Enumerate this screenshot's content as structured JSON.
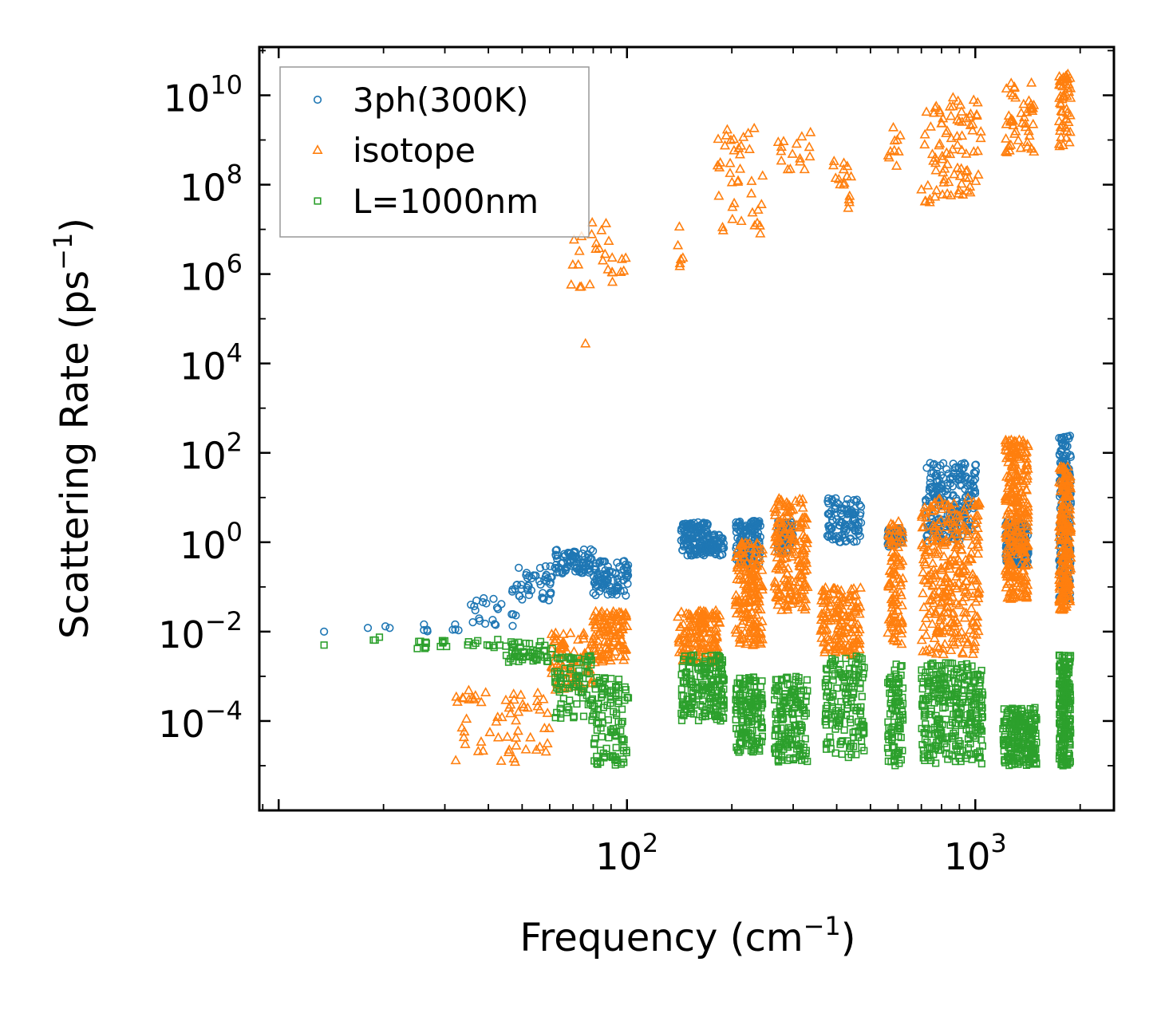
{
  "chart_data": {
    "type": "scatter",
    "title": "",
    "xlabel": "Frequency (cm",
    "xlabel_sup": "−1",
    "xlabel_end": ")",
    "ylabel": "Scattering Rate (ps",
    "ylabel_sup": "−1",
    "ylabel_end": ")",
    "xscale": "log",
    "yscale": "log",
    "xlim": [
      8.8,
      2500
    ],
    "ylim": [
      1e-06,
      120000000000.0
    ],
    "x_ticks": [
      {
        "value": 100,
        "base": "10",
        "exp": "2"
      },
      {
        "value": 1000,
        "base": "10",
        "exp": "3"
      }
    ],
    "y_ticks": [
      {
        "value": 10000000000.0,
        "base": "10",
        "exp": "10"
      },
      {
        "value": 100000000.0,
        "base": "10",
        "exp": "8"
      },
      {
        "value": 1000000.0,
        "base": "10",
        "exp": "6"
      },
      {
        "value": 10000.0,
        "base": "10",
        "exp": "4"
      },
      {
        "value": 100.0,
        "base": "10",
        "exp": "2"
      },
      {
        "value": 1,
        "base": "10",
        "exp": "0"
      },
      {
        "value": 0.01,
        "base": "10",
        "exp": "−2"
      },
      {
        "value": 0.0001,
        "base": "10",
        "exp": "−4"
      }
    ],
    "legend_position": "top-left",
    "series": [
      {
        "name": "3ph(300K)",
        "marker": "circle",
        "color": "#1f77b4",
        "clusters": [
          {
            "xmin": 13.5,
            "xmax": 13.5,
            "ymin": 0.01,
            "ymax": 0.01,
            "n": 1
          },
          {
            "xmin": 18,
            "xmax": 21,
            "ymin": 0.012,
            "ymax": 0.014,
            "n": 3
          },
          {
            "xmin": 24,
            "xmax": 33,
            "ymin": 0.01,
            "ymax": 0.016,
            "n": 8
          },
          {
            "xmin": 35,
            "xmax": 48,
            "ymin": 0.012,
            "ymax": 0.1,
            "n": 25
          },
          {
            "xmin": 48,
            "xmax": 62,
            "ymin": 0.05,
            "ymax": 0.3,
            "n": 45
          },
          {
            "xmin": 62,
            "xmax": 80,
            "ymin": 0.2,
            "ymax": 0.7,
            "n": 80
          },
          {
            "xmin": 80,
            "xmax": 101,
            "ymin": 0.06,
            "ymax": 0.4,
            "n": 90
          },
          {
            "xmin": 143,
            "xmax": 172,
            "ymin": 0.5,
            "ymax": 3,
            "n": 140
          },
          {
            "xmin": 172,
            "xmax": 190,
            "ymin": 0.5,
            "ymax": 1.5,
            "n": 50
          },
          {
            "xmin": 205,
            "xmax": 242,
            "ymin": 0.3,
            "ymax": 3,
            "n": 140
          },
          {
            "xmin": 270,
            "xmax": 300,
            "ymin": 0.6,
            "ymax": 3,
            "n": 60
          },
          {
            "xmin": 375,
            "xmax": 470,
            "ymin": 1,
            "ymax": 10,
            "n": 100
          },
          {
            "xmin": 560,
            "xmax": 620,
            "ymin": 0.8,
            "ymax": 2,
            "n": 50
          },
          {
            "xmin": 720,
            "xmax": 1010,
            "ymin": 1,
            "ymax": 60,
            "n": 220
          },
          {
            "xmin": 1220,
            "xmax": 1420,
            "ymin": 0.3,
            "ymax": 3,
            "n": 150
          },
          {
            "xmin": 1740,
            "xmax": 1880,
            "ymin": 0.05,
            "ymax": 250,
            "n": 220
          }
        ]
      },
      {
        "name": "isotope",
        "marker": "triangle",
        "color": "#ff7f0e",
        "clusters": [
          {
            "xmin": 32,
            "xmax": 60,
            "ymin": 1.2e-05,
            "ymax": 0.0005,
            "n": 60
          },
          {
            "xmin": 60,
            "xmax": 80,
            "ymin": 0.0005,
            "ymax": 0.01,
            "n": 80
          },
          {
            "xmin": 80,
            "xmax": 100,
            "ymin": 0.002,
            "ymax": 0.03,
            "n": 110
          },
          {
            "xmin": 140,
            "xmax": 185,
            "ymin": 0.002,
            "ymax": 0.03,
            "n": 150
          },
          {
            "xmin": 205,
            "xmax": 245,
            "ymin": 0.005,
            "ymax": 1,
            "n": 180
          },
          {
            "xmin": 265,
            "xmax": 330,
            "ymin": 0.03,
            "ymax": 10,
            "n": 180
          },
          {
            "xmin": 360,
            "xmax": 470,
            "ymin": 0.003,
            "ymax": 0.1,
            "n": 150
          },
          {
            "xmin": 560,
            "xmax": 620,
            "ymin": 0.005,
            "ymax": 3,
            "n": 100
          },
          {
            "xmin": 700,
            "xmax": 1030,
            "ymin": 0.003,
            "ymax": 10,
            "n": 300
          },
          {
            "xmin": 1220,
            "xmax": 1420,
            "ymin": 0.05,
            "ymax": 200,
            "n": 280
          },
          {
            "xmin": 1740,
            "xmax": 1880,
            "ymin": 0.03,
            "ymax": 50,
            "n": 200
          },
          {
            "xmin": 68,
            "xmax": 100,
            "ymin": 400000,
            "ymax": 15000000,
            "n": 28
          },
          {
            "xmin": 76,
            "xmax": 76,
            "ymin": 28000,
            "ymax": 28000,
            "n": 1
          },
          {
            "xmin": 140,
            "xmax": 145,
            "ymin": 800000,
            "ymax": 15000000,
            "n": 6
          },
          {
            "xmin": 180,
            "xmax": 248,
            "ymin": 6000000,
            "ymax": 2500000000,
            "n": 40
          },
          {
            "xmin": 270,
            "xmax": 340,
            "ymin": 200000000,
            "ymax": 1500000000,
            "n": 16
          },
          {
            "xmin": 390,
            "xmax": 440,
            "ymin": 30000000,
            "ymax": 400000000,
            "n": 16
          },
          {
            "xmin": 560,
            "xmax": 610,
            "ymin": 150000000,
            "ymax": 2500000000,
            "n": 10
          },
          {
            "xmin": 700,
            "xmax": 1040,
            "ymin": 40000000,
            "ymax": 9000000000,
            "n": 90
          },
          {
            "xmin": 1220,
            "xmax": 1500,
            "ymin": 500000000,
            "ymax": 20000000000,
            "n": 50
          },
          {
            "xmin": 1740,
            "xmax": 1880,
            "ymin": 700000000,
            "ymax": 30000000000,
            "n": 50
          }
        ]
      },
      {
        "name": "L=1000nm",
        "marker": "square",
        "color": "#2ca02c",
        "clusters": [
          {
            "xmin": 13.5,
            "xmax": 13.5,
            "ymin": 0.005,
            "ymax": 0.005,
            "n": 1
          },
          {
            "xmin": 18,
            "xmax": 22,
            "ymin": 0.005,
            "ymax": 0.008,
            "n": 3
          },
          {
            "xmin": 25,
            "xmax": 45,
            "ymin": 0.004,
            "ymax": 0.007,
            "n": 25
          },
          {
            "xmin": 45,
            "xmax": 62,
            "ymin": 0.002,
            "ymax": 0.006,
            "n": 50
          },
          {
            "xmin": 62,
            "xmax": 80,
            "ymin": 0.0001,
            "ymax": 0.003,
            "n": 80
          },
          {
            "xmin": 80,
            "xmax": 101,
            "ymin": 1e-05,
            "ymax": 0.001,
            "n": 110
          },
          {
            "xmin": 143,
            "xmax": 190,
            "ymin": 0.0001,
            "ymax": 0.003,
            "n": 180
          },
          {
            "xmin": 205,
            "xmax": 245,
            "ymin": 2e-05,
            "ymax": 0.001,
            "n": 150
          },
          {
            "xmin": 265,
            "xmax": 330,
            "ymin": 1.2e-05,
            "ymax": 0.001,
            "n": 160
          },
          {
            "xmin": 370,
            "xmax": 480,
            "ymin": 1.5e-05,
            "ymax": 0.003,
            "n": 150
          },
          {
            "xmin": 560,
            "xmax": 620,
            "ymin": 1e-05,
            "ymax": 0.002,
            "n": 90
          },
          {
            "xmin": 700,
            "xmax": 1060,
            "ymin": 1e-05,
            "ymax": 0.002,
            "n": 300
          },
          {
            "xmin": 1200,
            "xmax": 1500,
            "ymin": 1e-05,
            "ymax": 0.0002,
            "n": 200
          },
          {
            "xmin": 1740,
            "xmax": 1880,
            "ymin": 1e-05,
            "ymax": 0.003,
            "n": 200
          }
        ]
      }
    ]
  }
}
